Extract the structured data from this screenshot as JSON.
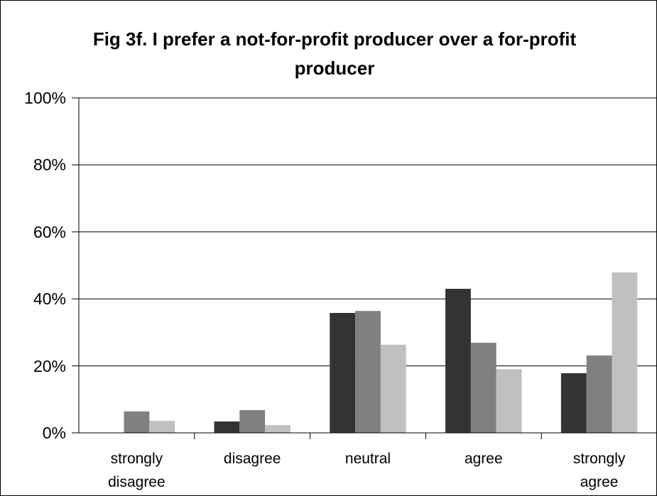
{
  "chart_data": {
    "type": "bar",
    "title": "Fig 3f. I prefer a not-for-profit producer over a for-profit producer",
    "categories": [
      "strongly disagree",
      "disagree",
      "neutral",
      "agree",
      "strongly agree"
    ],
    "series": [
      {
        "color": "#333333",
        "values": [
          0,
          3.4,
          35.8,
          43,
          17.8
        ]
      },
      {
        "color": "#808080",
        "values": [
          6.4,
          6.8,
          36.4,
          26.9,
          23.1
        ]
      },
      {
        "color": "#c0c0c0",
        "values": [
          3.6,
          2.3,
          26.3,
          19,
          47.9
        ]
      }
    ],
    "ylim": [
      0,
      100
    ],
    "yticks": [
      {
        "value": 0,
        "label": "0%"
      },
      {
        "value": 20,
        "label": "20%"
      },
      {
        "value": 40,
        "label": "40%"
      },
      {
        "value": 60,
        "label": "60%"
      },
      {
        "value": 80,
        "label": "80%"
      },
      {
        "value": 100,
        "label": "100%"
      }
    ],
    "grid": true
  }
}
